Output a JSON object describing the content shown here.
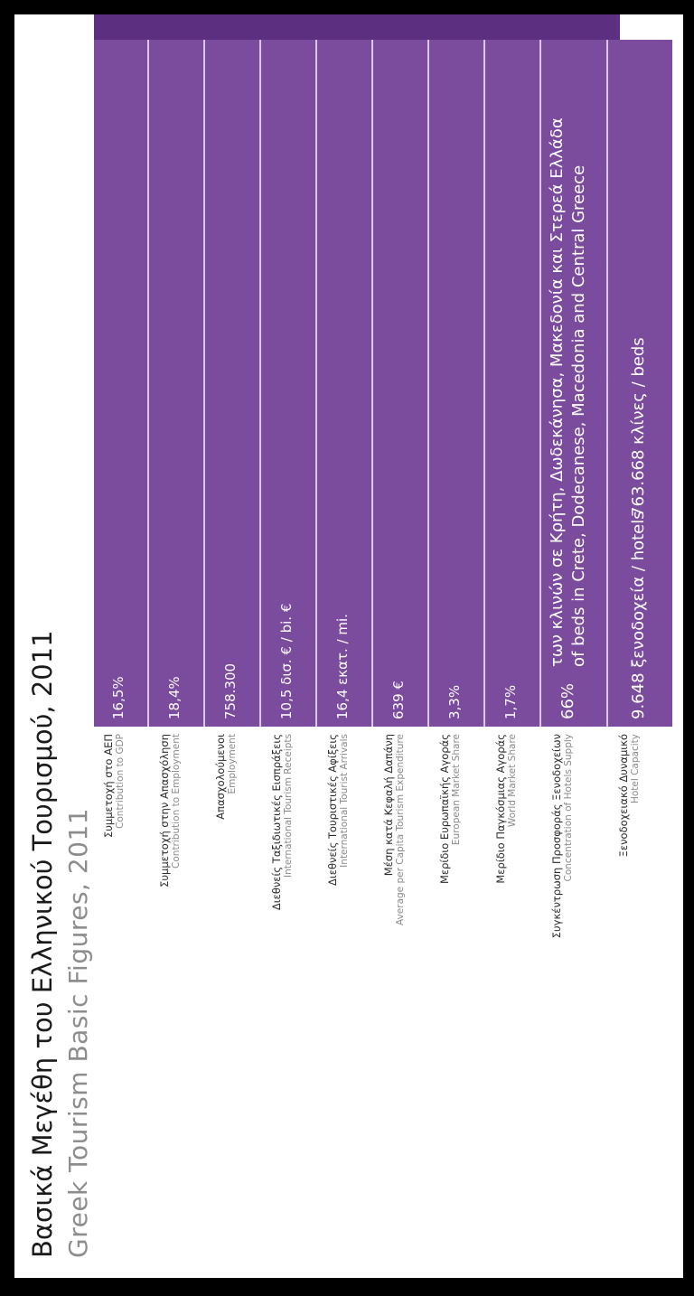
{
  "title": {
    "greek": "Βασικά Μεγέθη του Ελληνικού Τουρισμού, 2011",
    "english": "Greek Tourism Basic Figures, 2011"
  },
  "colors": {
    "panel": "#7b4b9e",
    "panel_side": "#5c2f80",
    "divider": "#d9c8e6"
  },
  "rows": [
    {
      "label_gr": "Συμμετοχή στο ΑΕΠ",
      "label_en": "Contribution to GDP",
      "value": "16,5%"
    },
    {
      "label_gr": "Συμμετοχή στην Απασχόληση",
      "label_en": "Contribution to Employment",
      "value": "18,4%"
    },
    {
      "label_gr": "Απασχολούμενοι",
      "label_en": "Employment",
      "value": "758.300"
    },
    {
      "label_gr": "Διεθνείς Ταξιδιωτικές Εισπράξεις",
      "label_en": "International Tourism Receipts",
      "value": "10,5 δισ. € / bi. €"
    },
    {
      "label_gr": "Διεθνείς Τουριστικές Αφίξεις",
      "label_en": "International Tourist Arrivals",
      "value": "16,4 εκατ. / mi."
    },
    {
      "label_gr": "Μέση κατά Κεφαλή Δαπάνη",
      "label_en": "Average per Capita Tourism Expenditure",
      "value": "639 €"
    },
    {
      "label_gr": "Μερίδιο Ευρωπαϊκής Αγοράς",
      "label_en": "European Market Share",
      "value": "3,3%"
    },
    {
      "label_gr": "Μερίδιο Παγκόσμιας Αγοράς",
      "label_en": "World Market Share",
      "value": "1,7%"
    },
    {
      "label_gr": "Συγκέντρωση Προσφοράς Ξενοδοχείων",
      "label_en": "Concentration of Hotels Supply",
      "value": "66%",
      "detail_gr": "των κλινών σε Κρήτη, Δωδεκάνησα, Μακεδονία και Στερεά Ελλάδα",
      "detail_en": "of beds in Crete, Dodecanese, Macedonia and Central Greece"
    },
    {
      "label_gr": "Ξενοδοχειακό Δυναμικό",
      "label_en": "Hotel Capacity",
      "value": "9.648 ξενοδοχεία / hotels",
      "value2": "763.668 κλίνες / beds"
    }
  ]
}
